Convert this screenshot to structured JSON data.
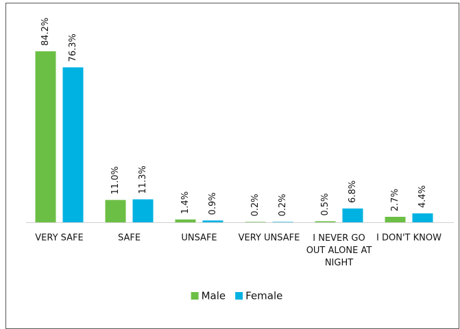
{
  "chart_data": {
    "type": "bar",
    "categories": [
      "VERY SAFE",
      "SAFE",
      "UNSAFE",
      "VERY UNSAFE",
      "I NEVER GO OUT ALONE AT NIGHT",
      "I DON'T KNOW"
    ],
    "series": [
      {
        "name": "Male",
        "color": "#6cbf45",
        "values": [
          84.2,
          11.0,
          1.4,
          0.2,
          0.5,
          2.7
        ],
        "value_labels": [
          "84.2%",
          "11.0%",
          "1.4%",
          "0.2%",
          "0.5%",
          "2.7%"
        ]
      },
      {
        "name": "Female",
        "color": "#00b2e2",
        "values": [
          76.3,
          11.3,
          0.9,
          0.2,
          6.8,
          4.4
        ],
        "value_labels": [
          "76.3%",
          "11.3%",
          "0.9%",
          "0.2%",
          "6.8%",
          "4.4%"
        ]
      }
    ],
    "legend": "bottom"
  }
}
